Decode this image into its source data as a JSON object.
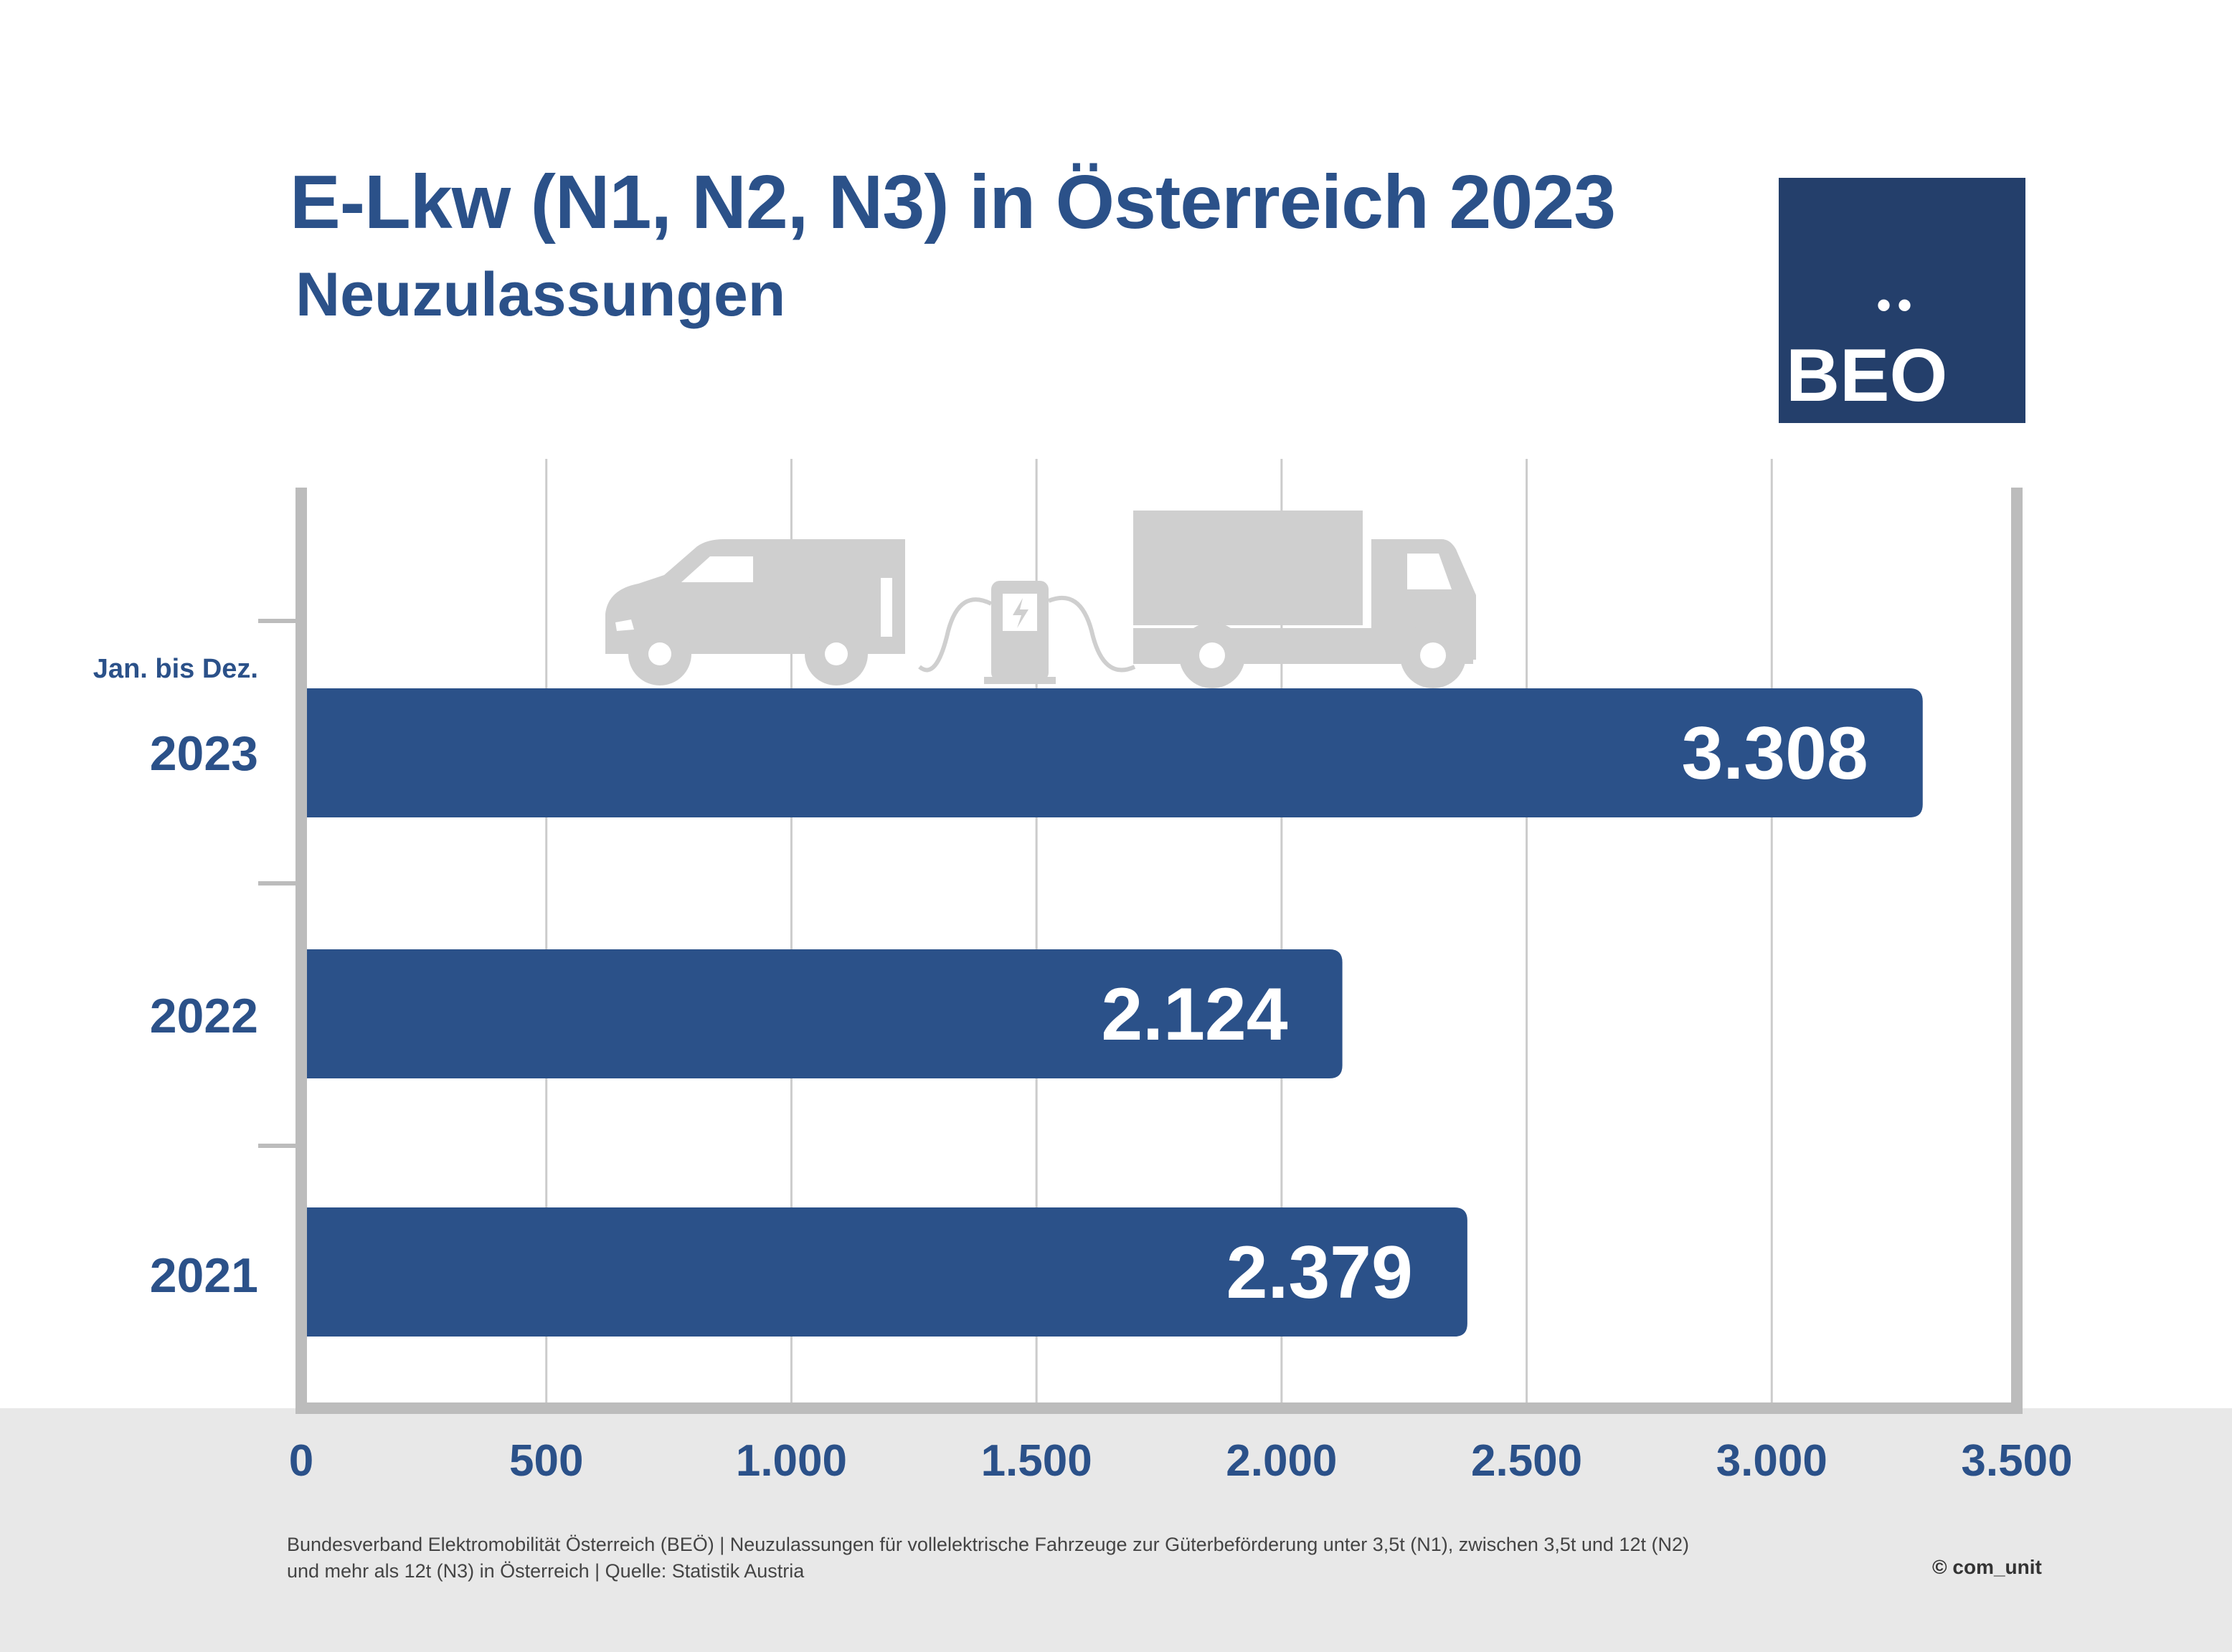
{
  "header": {
    "title": "E-Lkw (N1, N2, N3) in Österreich 2023",
    "subtitle": "Neuzulassungen"
  },
  "logo": {
    "text": "BEO",
    "dots": "••"
  },
  "period_label": "Jan. bis Dez.",
  "chart_data": {
    "type": "bar",
    "orientation": "horizontal",
    "title": "E-Lkw (N1, N2, N3) in Österreich 2023",
    "subtitle": "Neuzulassungen",
    "categories": [
      "2023",
      "2022",
      "2021"
    ],
    "values": [
      3308,
      2124,
      2379
    ],
    "value_labels": [
      "3.308",
      "2.124",
      "2.379"
    ],
    "xlim": [
      0,
      3500
    ],
    "x_ticks": [
      0,
      500,
      1000,
      1500,
      2000,
      2500,
      3000,
      3500
    ],
    "x_tick_labels": [
      "0",
      "500",
      "1.000",
      "1.500",
      "2.000",
      "2.500",
      "3.000",
      "3.500"
    ],
    "grid": true,
    "bar_color": "#2b5189",
    "grid_color": "#cccccc",
    "axis_color": "#bcbcbc"
  },
  "footer": {
    "source_line1": "Bundesverband Elektromobilität Österreich (BEÖ) | Neuzulassungen für vollelektrische Fahrzeuge zur Güterbeförderung unter 3,5t (N1), zwischen 3,5t und 12t (N2)",
    "source_line2": "und mehr als 12t (N3) in Österreich | Quelle: Statistik Austria",
    "copyright": "© com_unit"
  },
  "icons": [
    "van-icon",
    "charging-station-icon",
    "truck-icon"
  ]
}
